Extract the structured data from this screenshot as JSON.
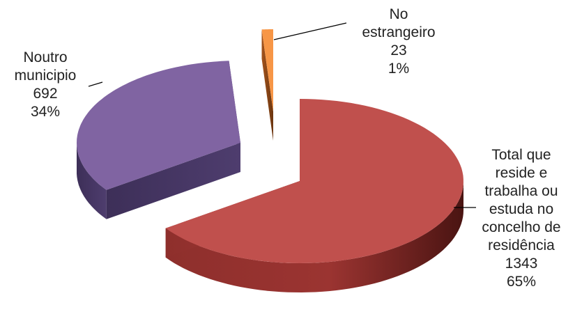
{
  "chart_data": {
    "type": "pie",
    "style": "3d-exploded",
    "slices": [
      {
        "label_lines": [
          "Total que",
          "reside e",
          "trabalha ou",
          "estuda no",
          "concelho de",
          "residência"
        ],
        "value": 1343,
        "percent": "65%",
        "color": "#c0504d"
      },
      {
        "label_lines": [
          "Noutro",
          "municipio"
        ],
        "value": 692,
        "percent": "34%",
        "color": "#8064a2"
      },
      {
        "label_lines": [
          "No",
          "estrangeiro"
        ],
        "value": 23,
        "percent": "1%",
        "color": "#f79646"
      }
    ]
  }
}
